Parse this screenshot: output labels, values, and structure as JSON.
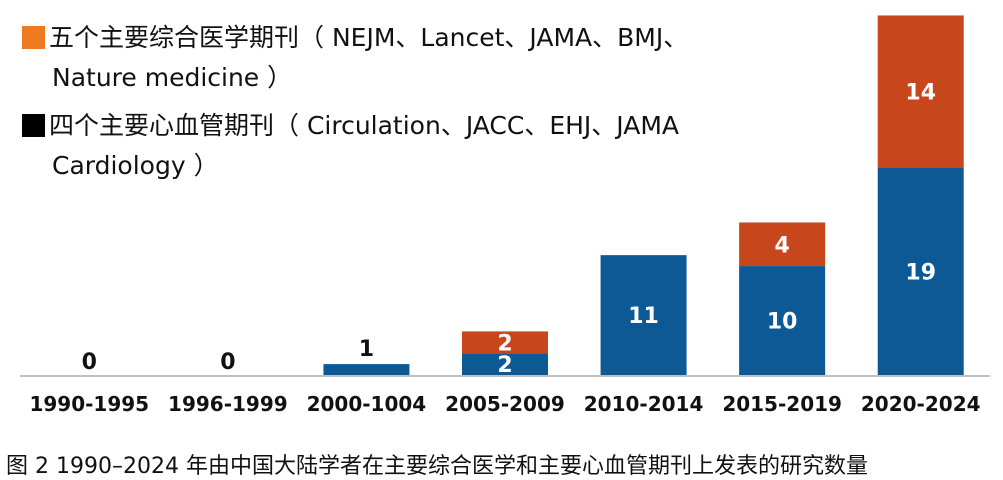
{
  "chart_data": {
    "type": "bar",
    "stacked": true,
    "categories": [
      "1990-1995",
      "1996-1999",
      "2000-1004",
      "2005-2009",
      "2010-2014",
      "2015-2019",
      "2020-2024"
    ],
    "series": [
      {
        "name": "四个主要心血管期刊（ Circulation、JACC、EHJ、JAMA Cardiology ）",
        "color": "#0d5996",
        "values": [
          0,
          0,
          1,
          2,
          11,
          10,
          19
        ]
      },
      {
        "name": "五个主要综合医学期刊（ NEJM、Lancet、JAMA、BMJ、Nature medicine ）",
        "color": "#c8461c",
        "values": [
          0,
          0,
          0,
          2,
          0,
          4,
          14
        ]
      }
    ],
    "title": "",
    "xlabel": "",
    "ylabel": "",
    "ylim": [
      0,
      33.5
    ],
    "grid": false,
    "legend_position": "top-left"
  },
  "legend": {
    "item1_line1": "五个主要综合医学期刊（ NEJM、Lancet、JAMA、BMJ、",
    "item1_line2": "Nature medicine ）",
    "item1_swatch_color": "#f07a22",
    "item2_line1": "四个主要心血管期刊（ Circulation、JACC、EHJ、JAMA",
    "item2_line2": "Cardiology ）",
    "item2_swatch_color": "#000000"
  },
  "caption": "图 2 1990–2024 年由中国大陆学者在主要综合医学和主要心血管期刊上发表的研究数量"
}
